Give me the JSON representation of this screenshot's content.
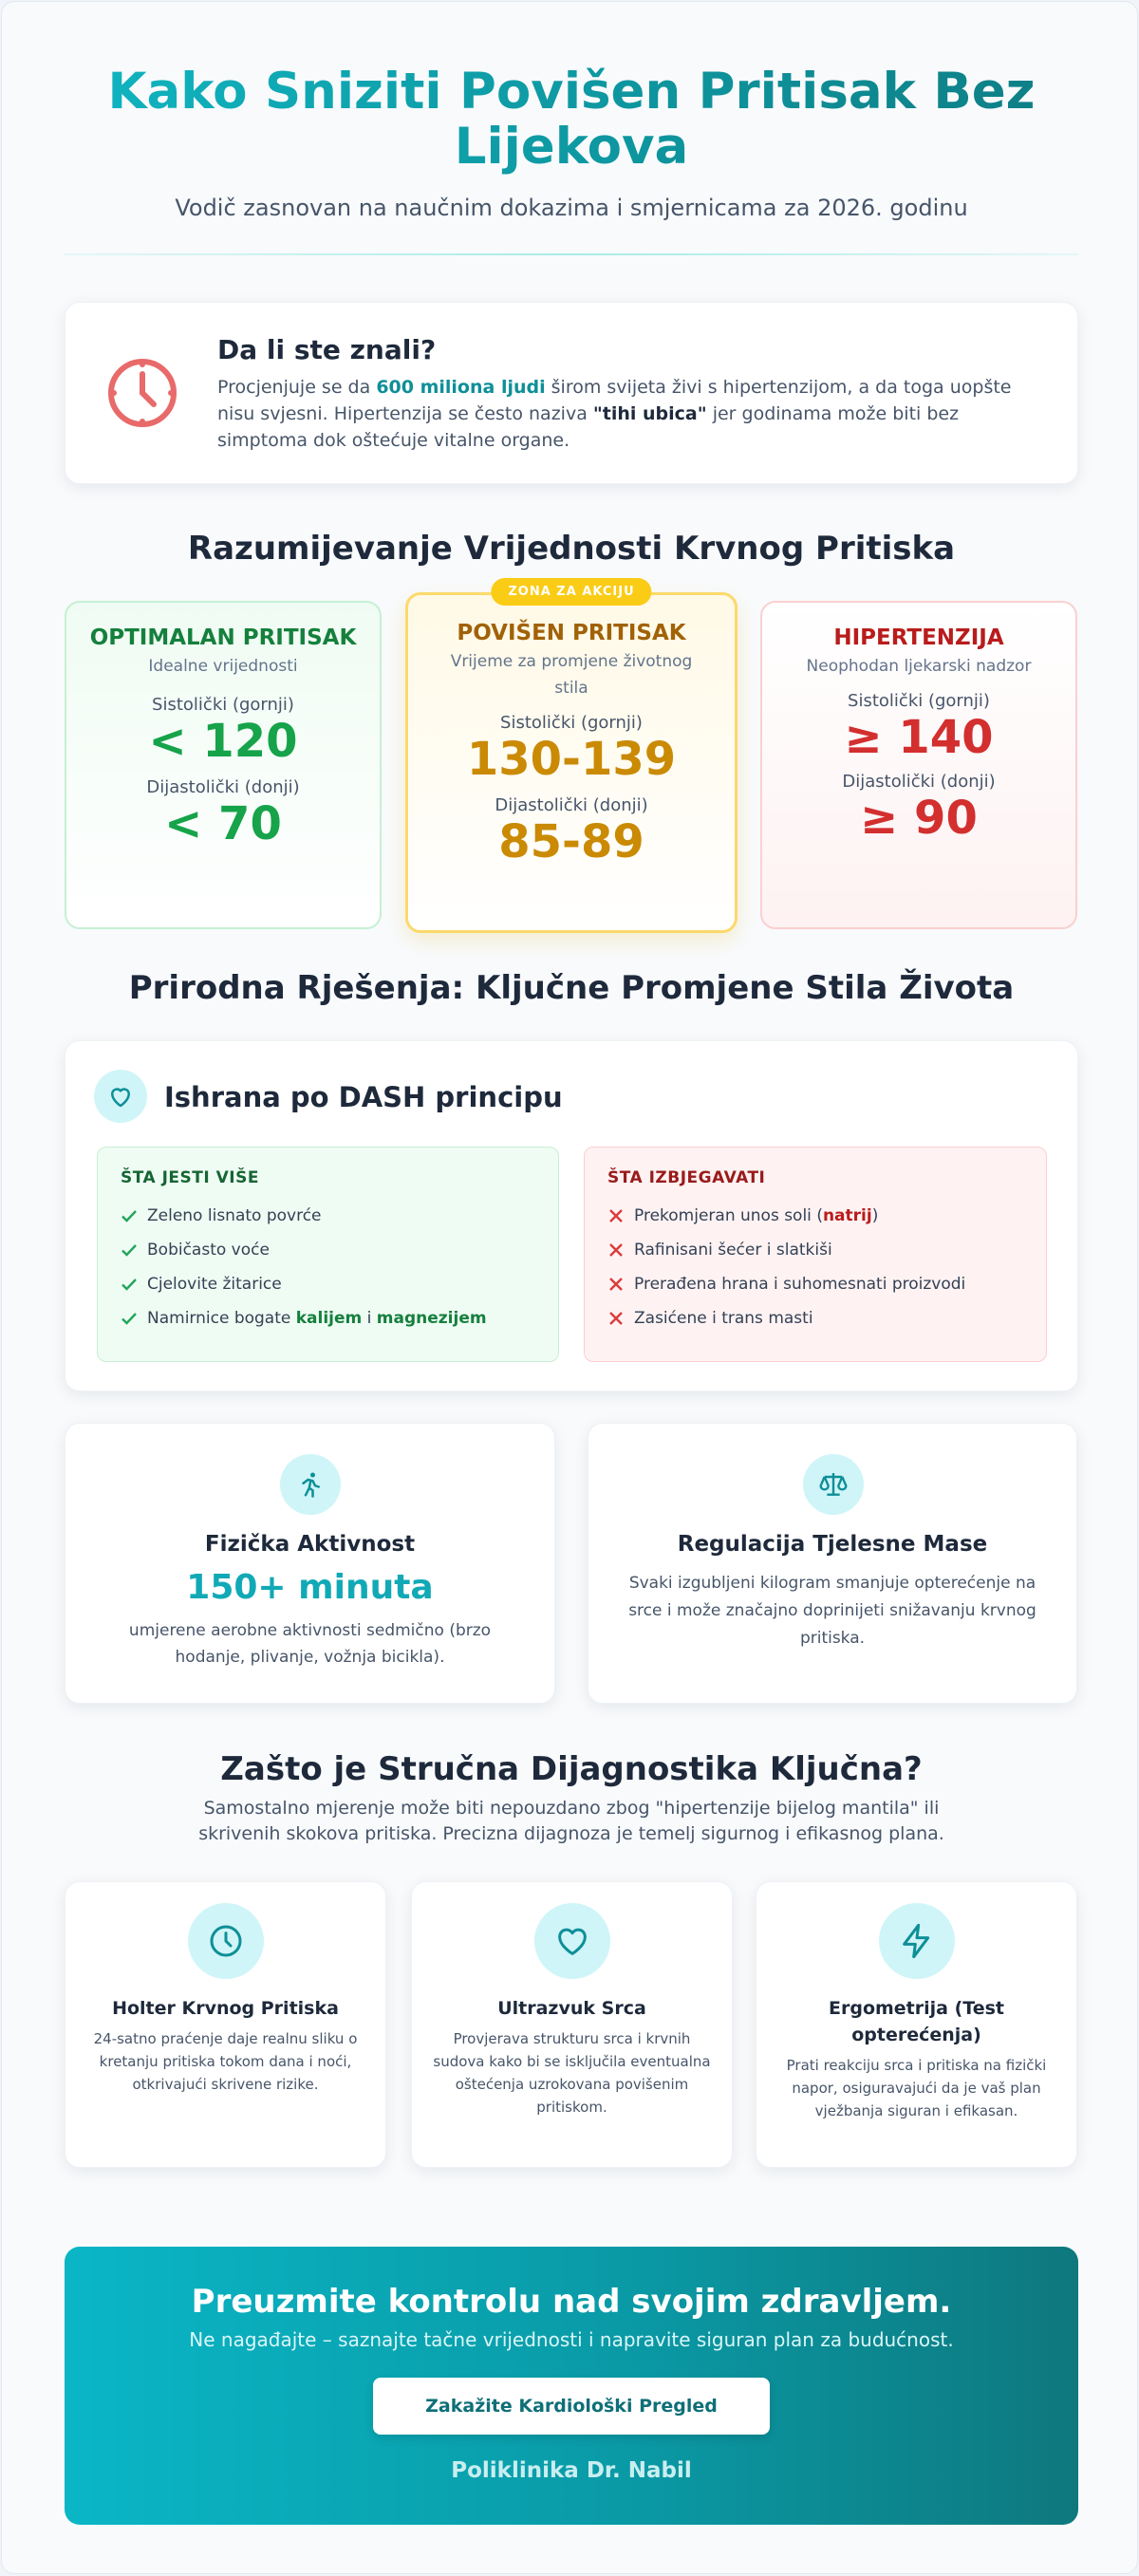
{
  "header": {
    "title": "Kako Sniziti Povišen Pritisak Bez Lijekova",
    "subtitle": "Vodič zasnovan na naučnim dokazima i smjernicama za 2026. godinu"
  },
  "did_you_know": {
    "title": "Da li ste znali?",
    "text": [
      "Procjenjuje se da ",
      "600 miliona ljudi",
      " širom svijeta živi s hipertenzijom, a da toga uopšte nisu svjesni. Hipertenzija se često naziva ",
      "\"tihi ubica\"",
      " jer godinama može biti bez simptoma dok oštećuje vitalne organe."
    ]
  },
  "values_section": {
    "title": "Razumijevanje Vrijednosti Krvnog Pritiska",
    "cards": [
      {
        "title": "OPTIMALAN PRITISAK",
        "subtitle": "Idealne vrijednosti",
        "systolic_label": "Sistolički (gornji)",
        "systolic": "< 120",
        "diastolic_label": "Dijastolički (donji)",
        "diastolic": "< 70"
      },
      {
        "badge": "ZONA ZA AKCIJU",
        "title": "POVIŠEN PRITISAK",
        "subtitle": "Vrijeme za promjene životnog stila",
        "systolic_label": "Sistolički (gornji)",
        "systolic": "130-139",
        "diastolic_label": "Dijastolički (donji)",
        "diastolic": "85-89"
      },
      {
        "title": "HIPERTENZIJA",
        "subtitle": "Neophodan ljekarski nadzor",
        "systolic_label": "Sistolički (gornji)",
        "systolic": "≥ 140",
        "diastolic_label": "Dijastolički (donji)",
        "diastolic": "≥ 90"
      }
    ]
  },
  "lifestyle": {
    "title": "Prirodna Rješenja: Ključne Promjene Stila Života",
    "diet": {
      "title": "Ishrana po DASH principu",
      "eat_more": {
        "title": "ŠTA JESTI VIŠE",
        "items": [
          "Zeleno lisnato povrće",
          "Bobičasto voće",
          "Cjelovite žitarice",
          [
            "Namirnice bogate ",
            "kalijem",
            " i ",
            "magnezijem"
          ]
        ]
      },
      "avoid": {
        "title": "ŠTA IZBJEGAVATI",
        "items": [
          [
            "Prekomjeran unos soli (",
            "natrij",
            ")"
          ],
          "Rafinisani šećer i slatkiši",
          "Prerađena hrana i suhomesnati proizvodi",
          "Zasićene i trans masti"
        ]
      }
    },
    "activity": {
      "title": "Fizička Aktivnost",
      "highlight": "150+ minuta",
      "text": "umjerene aerobne aktivnosti sedmično (brzo hodanje, plivanje, vožnja bicikla)."
    },
    "weight": {
      "title": "Regulacija Tjelesne Mase",
      "text": "Svaki izgubljeni kilogram smanjuje opterećenje na srce i može značajno doprinijeti snižavanju krvnog pritiska."
    }
  },
  "diagnostics": {
    "title": "Zašto je Stručna Dijagnostika Ključna?",
    "subtitle": "Samostalno mjerenje može biti nepouzdano zbog \"hipertenzije bijelog mantila\" ili skrivenih skokova pritiska. Precizna dijagnoza je temelj sigurnog i efikasnog plana.",
    "cards": [
      {
        "title": "Holter Krvnog Pritiska",
        "text": "24-satno praćenje daje realnu sliku o kretanju pritiska tokom dana i noći, otkrivajući skrivene rizike."
      },
      {
        "title": "Ultrazvuk Srca",
        "text": "Provjerava strukturu srca i krvnih sudova kako bi se isključila eventualna oštećenja uzrokovana povišenim pritiskom."
      },
      {
        "title": "Ergometrija (Test opterećenja)",
        "text": "Prati reakciju srca i pritiska na fizički napor, osiguravajući da je vaš plan vježbanja siguran i efikasan."
      }
    ]
  },
  "cta": {
    "title": "Preuzmite kontrolu nad svojim zdravljem.",
    "subtitle": "Ne nagađajte – saznajte tačne vrijednosti i napravite siguran plan za budućnost.",
    "button": "Zakažite Kardiološki Pregled",
    "clinic": "Poliklinika Dr. Nabil"
  }
}
